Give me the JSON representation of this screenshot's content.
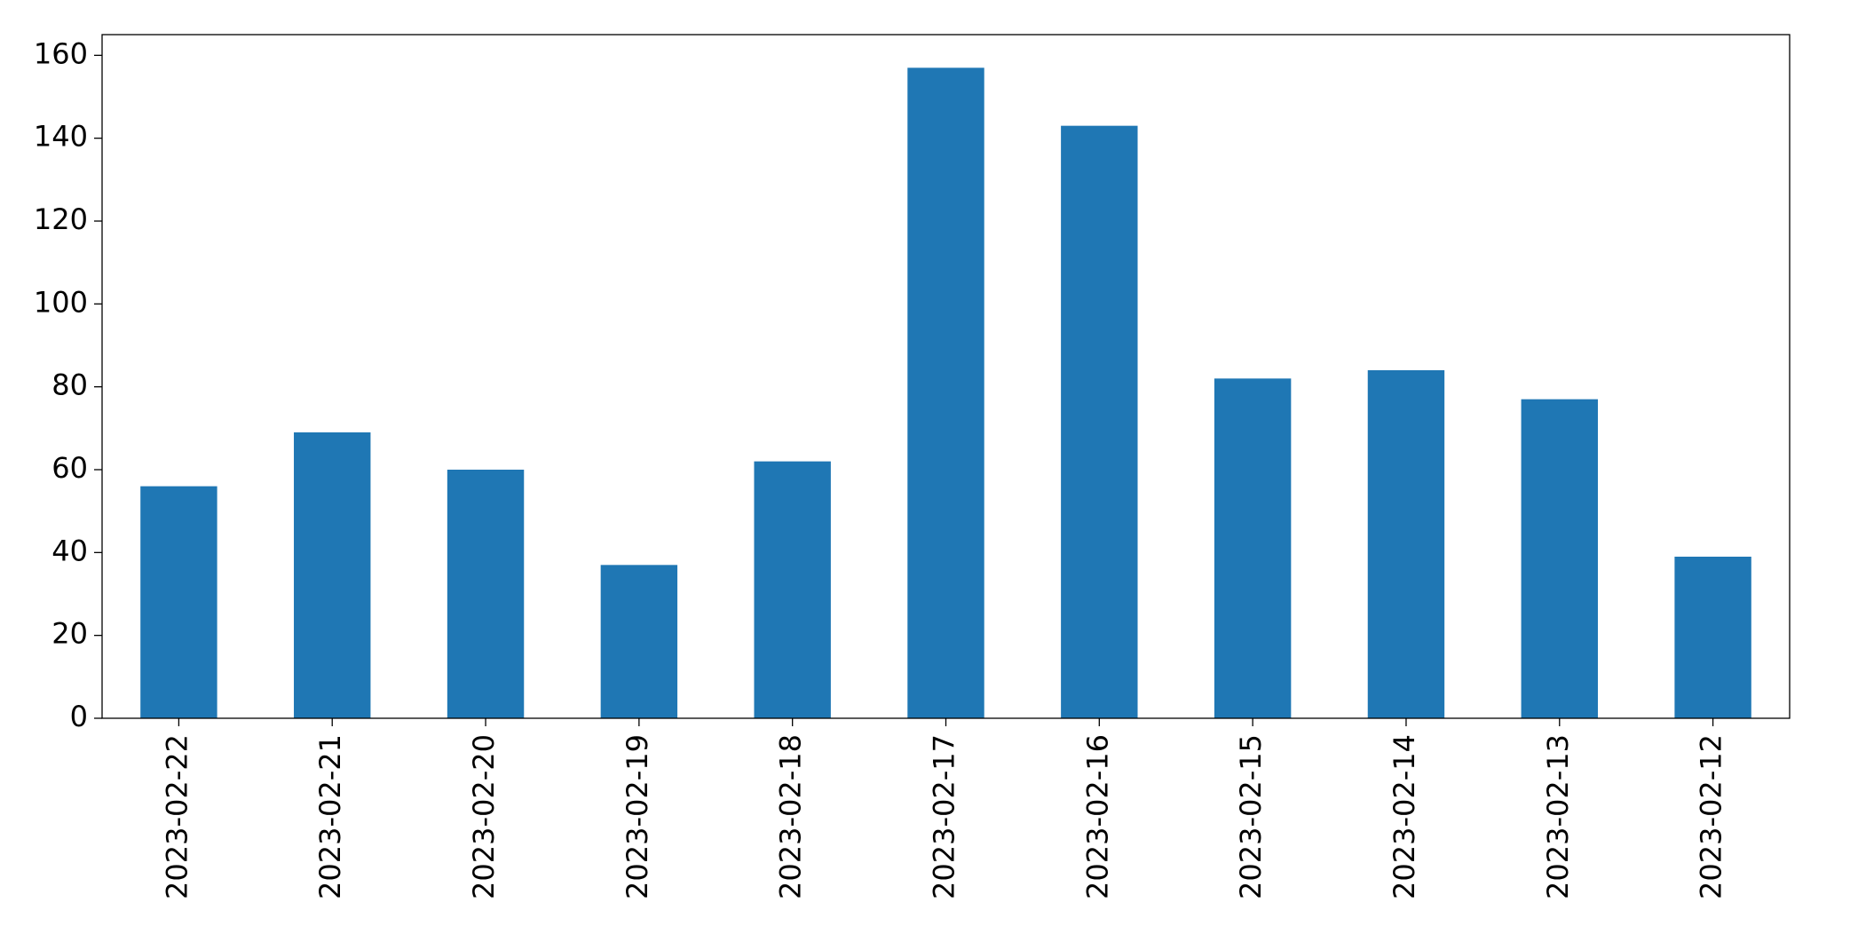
{
  "chart_data": {
    "type": "bar",
    "categories": [
      "2023-02-22",
      "2023-02-21",
      "2023-02-20",
      "2023-02-19",
      "2023-02-18",
      "2023-02-17",
      "2023-02-16",
      "2023-02-15",
      "2023-02-14",
      "2023-02-13",
      "2023-02-12"
    ],
    "values": [
      56,
      69,
      60,
      37,
      62,
      157,
      143,
      82,
      84,
      77,
      39
    ],
    "color": "#1f77b4",
    "ylim": [
      0,
      165
    ],
    "yticks": [
      0,
      20,
      40,
      60,
      80,
      100,
      120,
      140,
      160
    ],
    "grid": false
  }
}
